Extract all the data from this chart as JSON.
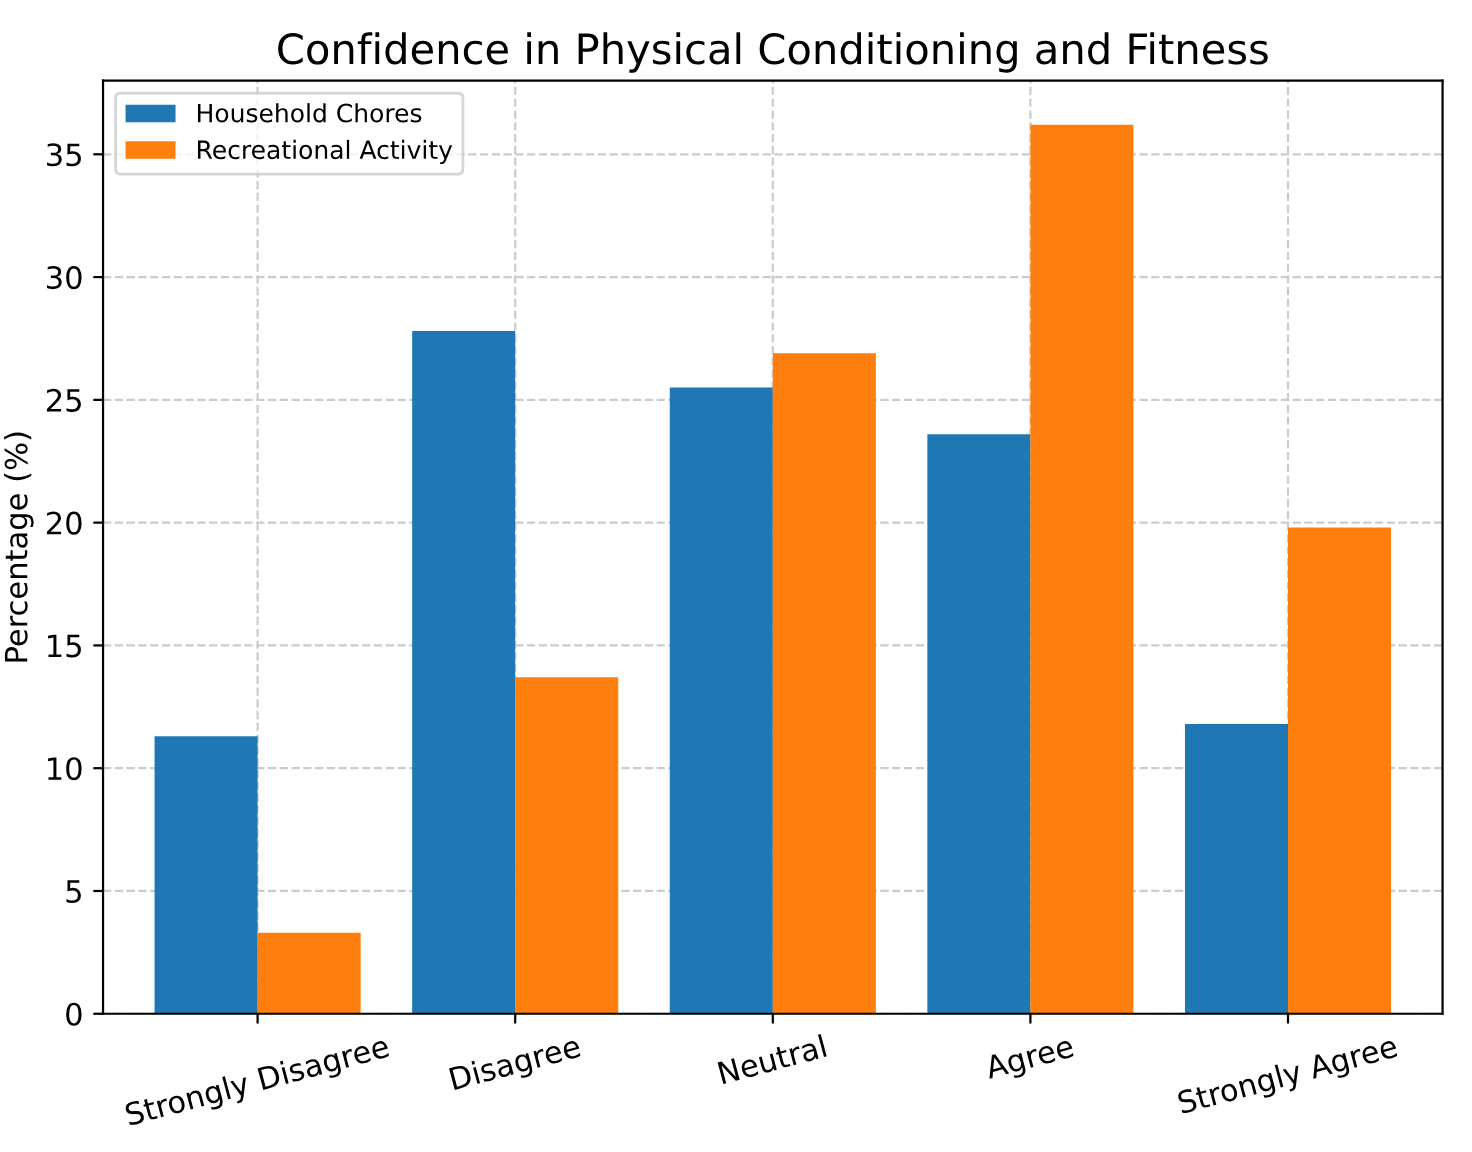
{
  "chart_data": {
    "type": "bar",
    "title": "Confidence in Physical Conditioning and Fitness",
    "ylabel": "Percentage (%)",
    "categories": [
      "Strongly Disagree",
      "Disagree",
      "Neutral",
      "Agree",
      "Strongly Agree"
    ],
    "series": [
      {
        "name": "Household Chores",
        "color": "#1f77b4",
        "values": [
          11.3,
          27.8,
          25.5,
          23.6,
          11.8
        ]
      },
      {
        "name": "Recreational Activity",
        "color": "#ff7f0e",
        "values": [
          3.3,
          13.7,
          26.9,
          36.2,
          19.8
        ]
      }
    ],
    "ylim": [
      0,
      38
    ],
    "yticks": [
      0,
      5,
      10,
      15,
      20,
      25,
      30,
      35
    ],
    "grid": true,
    "legend": "top left"
  }
}
